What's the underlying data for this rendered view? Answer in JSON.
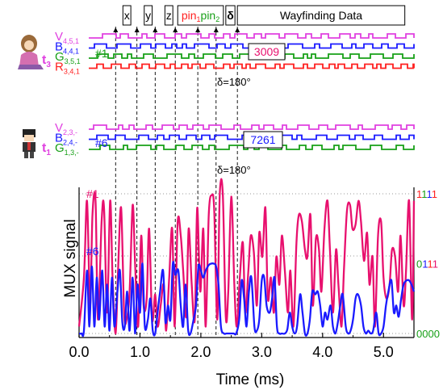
{
  "chart_data": {
    "type": "line",
    "xlabel": "Time (ms)",
    "ylabel": "MUX signal",
    "xlim": [
      0.0,
      5.5
    ],
    "xticks": [
      "0.0",
      "1.0",
      "2.0",
      "3.0",
      "4.0",
      "5.0"
    ],
    "header_segments": [
      {
        "label": "x",
        "start": 0.72,
        "end": 0.85
      },
      {
        "label": "y",
        "start": 1.07,
        "end": 1.2
      },
      {
        "label": "z",
        "start": 1.41,
        "end": 1.54
      },
      {
        "label": "pin₁pin₂",
        "start": 1.62,
        "end": 2.37
      },
      {
        "label": "δ",
        "start": 2.41,
        "end": 2.56
      },
      {
        "label": "Wayfinding Data",
        "start": 2.6,
        "end": 5.35
      }
    ],
    "dashed_markers_ms": [
      0.6,
      0.95,
      1.25,
      1.58,
      1.95,
      2.25,
      2.6
    ],
    "right_axis_labels": [
      {
        "text": "1111",
        "level": 1.0,
        "color": "#e8106e"
      },
      {
        "text": "0111",
        "level": 0.5,
        "color": "#1a1aff"
      },
      {
        "text": "0000",
        "level": 0.0,
        "color": "#18a018"
      }
    ],
    "groups": [
      {
        "id": "t3",
        "tag_letter": "t",
        "tag_sub": "3",
        "channel_label": "#1",
        "code": "3009",
        "code_color": "#e8106e",
        "delta_note": "δ=180°",
        "channels": [
          {
            "letter": "V",
            "sub": "4,5,1",
            "color": "#e040e0"
          },
          {
            "letter": "B",
            "sub": "4,4,1",
            "color": "#1a1aff"
          },
          {
            "letter": "G",
            "sub": "3,5,1",
            "color": "#18a018"
          },
          {
            "letter": "R",
            "sub": "3,4,1",
            "color": "#ff2020"
          }
        ]
      },
      {
        "id": "t1",
        "tag_letter": "t",
        "tag_sub": "1",
        "channel_label": "#6",
        "code": "7261",
        "code_color": "#1a1aff",
        "delta_note": "δ=180°",
        "channels": [
          {
            "letter": "V",
            "sub": "2,3,-",
            "color": "#e040e0"
          },
          {
            "letter": "B",
            "sub": "2,4,-",
            "color": "#1a1aff"
          },
          {
            "letter": "G",
            "sub": "1,3,-",
            "color": "#18a018"
          }
        ]
      }
    ],
    "series": [
      {
        "name": "#1",
        "color": "#e8106e",
        "x": [
          0.0,
          0.08,
          0.13,
          0.18,
          0.22,
          0.27,
          0.31,
          0.37,
          0.41,
          0.46,
          0.51,
          0.55,
          0.6,
          0.64,
          0.69,
          0.74,
          0.78,
          0.83,
          0.88,
          0.92,
          0.97,
          1.02,
          1.06,
          1.11,
          1.15,
          1.2,
          1.25,
          1.29,
          1.34,
          1.39,
          1.43,
          1.48,
          1.53,
          1.57,
          1.62,
          1.67,
          1.71,
          1.76,
          1.8,
          1.85,
          1.9,
          1.94,
          1.99,
          2.04,
          2.08,
          2.13,
          2.18,
          2.22,
          2.27,
          2.31,
          2.36,
          2.41,
          2.45,
          2.5,
          2.55,
          2.59,
          2.64,
          2.69,
          2.73,
          2.78,
          2.82,
          2.87,
          2.92,
          2.96,
          3.01,
          3.06,
          3.1,
          3.15,
          3.2,
          3.24,
          3.29,
          3.33,
          3.38,
          3.43,
          3.47,
          3.52,
          3.57,
          3.61,
          3.66,
          3.71,
          3.75,
          3.8,
          3.84,
          3.89,
          3.94,
          3.98,
          4.03,
          4.08,
          4.12,
          4.17,
          4.22,
          4.26,
          4.31,
          4.35,
          4.4,
          4.45,
          4.49,
          4.54,
          4.59,
          4.63,
          4.68,
          4.73,
          4.77,
          4.82,
          4.86,
          4.91,
          4.96,
          5.0,
          5.05,
          5.1,
          5.14,
          5.19,
          5.24,
          5.28,
          5.33,
          5.37,
          5.42,
          5.47,
          5.5
        ],
        "values": [
          0.05,
          0.4,
          0.95,
          0.2,
          0.85,
          0.95,
          0.1,
          0.8,
          0.9,
          0.15,
          0.95,
          0.4,
          0.0,
          0.45,
          0.9,
          0.15,
          0.1,
          0.3,
          0.92,
          0.5,
          0.05,
          0.7,
          0.2,
          0.25,
          0.75,
          0.1,
          0.28,
          0.05,
          0.2,
          0.35,
          0.02,
          0.4,
          0.75,
          0.05,
          0.8,
          0.7,
          0.45,
          0.12,
          0.75,
          0.35,
          0.1,
          0.9,
          0.3,
          0.75,
          0.05,
          0.85,
          0.99,
          0.88,
          0.1,
          0.99,
          1.0,
          0.12,
          0.3,
          0.98,
          0.35,
          0.05,
          0.4,
          0.65,
          0.15,
          0.45,
          0.7,
          0.58,
          0.2,
          0.72,
          0.55,
          0.9,
          0.25,
          0.4,
          0.15,
          0.55,
          0.35,
          0.7,
          0.45,
          0.15,
          0.45,
          0.05,
          0.65,
          0.85,
          0.8,
          0.6,
          0.55,
          0.85,
          0.2,
          0.68,
          0.6,
          0.3,
          0.75,
          0.95,
          0.6,
          0.15,
          0.6,
          0.35,
          0.05,
          0.45,
          0.88,
          0.92,
          0.75,
          0.78,
          0.95,
          0.8,
          0.52,
          0.72,
          0.35,
          0.55,
          0.05,
          0.7,
          0.8,
          0.4,
          0.25,
          0.35,
          0.6,
          0.55,
          0.3,
          0.7,
          0.2,
          0.45,
          0.95,
          0.1,
          0.95
        ]
      },
      {
        "name": "#6",
        "color": "#1a1aff",
        "x": [
          0.0,
          0.04,
          0.08,
          0.13,
          0.17,
          0.21,
          0.25,
          0.29,
          0.33,
          0.38,
          0.42,
          0.46,
          0.5,
          0.54,
          0.58,
          0.63,
          0.67,
          0.71,
          0.75,
          0.79,
          0.83,
          0.88,
          0.92,
          0.96,
          1.0,
          1.04,
          1.08,
          1.13,
          1.17,
          1.21,
          1.25,
          1.29,
          1.33,
          1.38,
          1.42,
          1.46,
          1.5,
          1.54,
          1.58,
          1.63,
          1.67,
          1.71,
          1.75,
          1.79,
          1.83,
          1.88,
          1.92,
          1.96,
          2.0,
          2.04,
          2.08,
          2.13,
          2.17,
          2.21,
          2.25,
          2.29,
          2.33,
          2.38,
          2.42,
          2.46,
          2.5,
          2.54,
          2.58,
          2.63,
          2.67,
          2.71,
          2.75,
          2.79,
          2.83,
          2.88,
          2.92,
          2.96,
          3.0,
          3.04,
          3.08,
          3.13,
          3.17,
          3.21,
          3.25,
          3.29,
          3.33,
          3.38,
          3.42,
          3.46,
          3.5,
          3.54,
          3.58,
          3.63,
          3.67,
          3.71,
          3.75,
          3.79,
          3.83,
          3.88,
          3.92,
          3.96,
          4.0,
          4.04,
          4.08,
          4.13,
          4.17,
          4.21,
          4.25,
          4.29,
          4.33,
          4.38,
          4.42,
          4.46,
          4.5,
          4.54,
          4.58,
          4.63,
          4.67,
          4.71,
          4.75,
          4.79,
          4.83,
          4.88,
          4.92,
          4.96,
          5.0,
          5.04,
          5.08,
          5.13,
          5.17,
          5.21,
          5.25,
          5.29,
          5.33,
          5.38,
          5.42,
          5.46,
          5.5
        ],
        "values": [
          0.0,
          0.0,
          0.02,
          0.45,
          0.05,
          0.48,
          0.05,
          0.4,
          0.1,
          0.45,
          0.05,
          0.35,
          0.02,
          0.4,
          0.05,
          0.3,
          0.45,
          0.08,
          0.05,
          0.3,
          0.02,
          0.4,
          0.0,
          0.35,
          0.15,
          0.5,
          0.05,
          0.1,
          0.25,
          0.02,
          0.0,
          0.15,
          0.3,
          0.45,
          0.08,
          0.2,
          0.1,
          0.5,
          0.42,
          0.45,
          0.2,
          0.05,
          0.35,
          0.03,
          0.0,
          0.1,
          0.2,
          0.48,
          0.45,
          0.4,
          0.45,
          0.49,
          0.5,
          0.5,
          0.48,
          0.35,
          0.05,
          0.0,
          0.0,
          0.0,
          0.0,
          0.0,
          0.0,
          0.1,
          0.38,
          0.25,
          0.05,
          0.3,
          0.4,
          0.05,
          0.02,
          0.1,
          0.38,
          0.4,
          0.2,
          0.15,
          0.25,
          0.4,
          0.05,
          0.0,
          0.0,
          0.0,
          0.03,
          0.15,
          0.05,
          0.0,
          0.05,
          0.28,
          0.15,
          0.0,
          0.0,
          0.1,
          0.3,
          0.28,
          0.3,
          0.2,
          0.05,
          0.15,
          0.1,
          0.2,
          0.05,
          0.0,
          0.08,
          0.2,
          0.28,
          0.05,
          0.0,
          0.02,
          0.1,
          0.25,
          0.28,
          0.2,
          0.05,
          0.0,
          0.02,
          0.0,
          0.02,
          0.15,
          0.0,
          0.0,
          0.05,
          0.2,
          0.3,
          0.38,
          0.15,
          0.2,
          0.12,
          0.25,
          0.35,
          0.38,
          0.38,
          0.35,
          0.3
        ]
      }
    ]
  }
}
